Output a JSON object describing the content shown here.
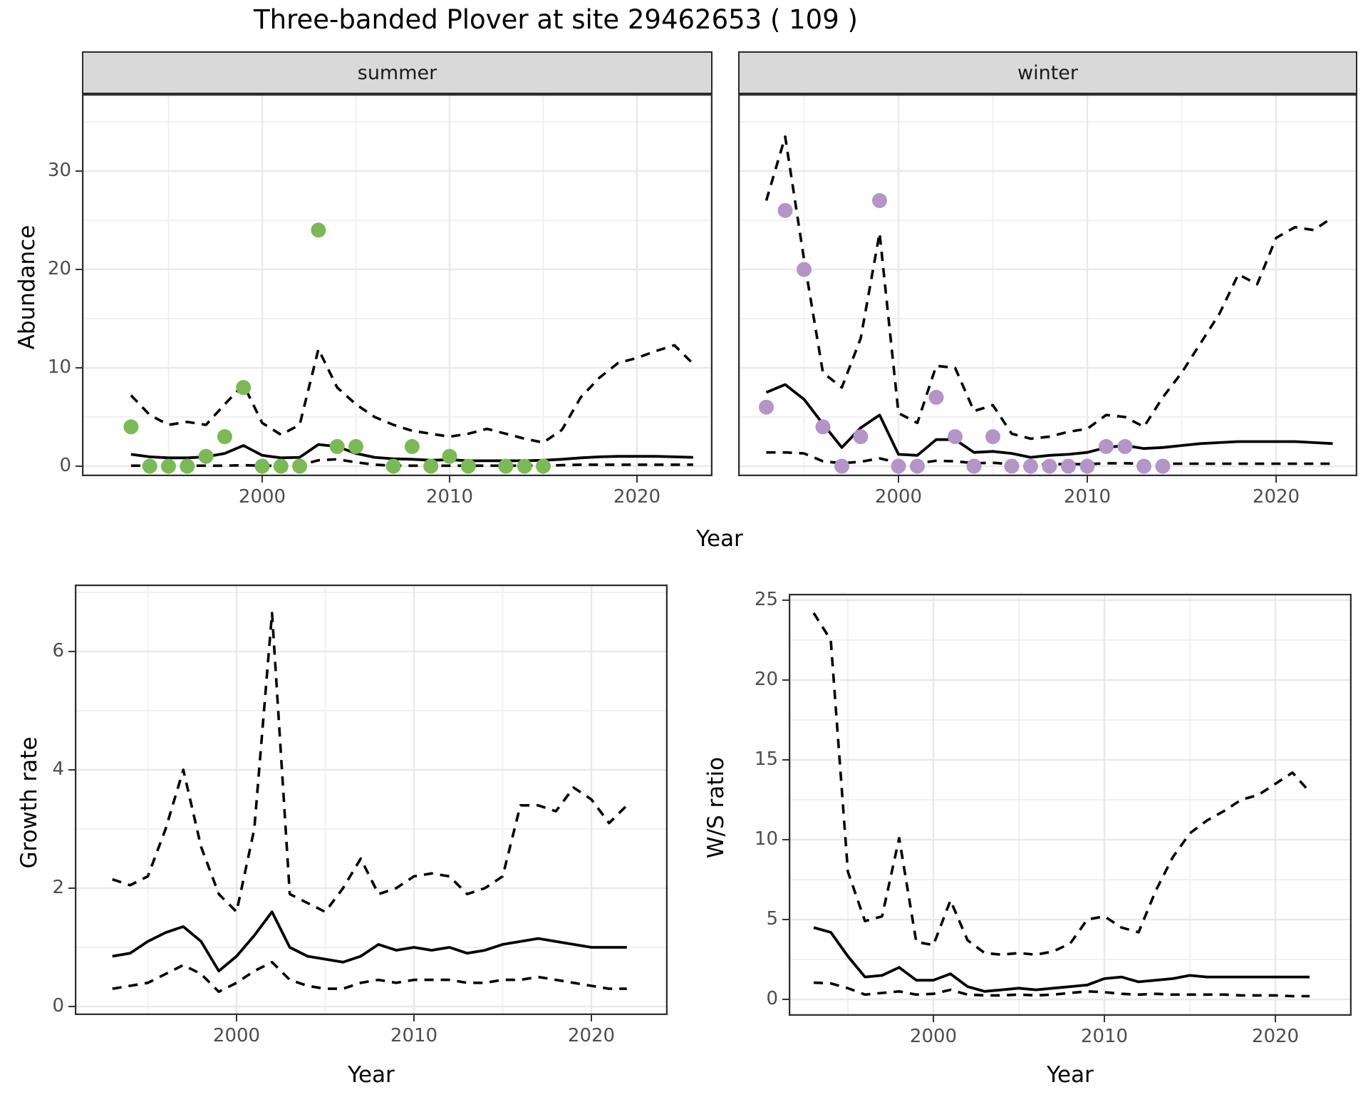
{
  "title": "Three-banded Plover at site 29462653 ( 109 )",
  "axis_titles": {
    "x": "Year",
    "y_abundance": "Abundance",
    "y_growth": "Growth rate",
    "y_ws": "W/S ratio"
  },
  "facets": {
    "summer": "summer",
    "winter": "winter"
  },
  "colors": {
    "summer_point": "#7bb957",
    "winter_point": "#b495c7",
    "line": "#000000",
    "grid_major": "#e9e9e9",
    "grid_minor": "#f1f1f1",
    "strip_bg": "#d9d9d9",
    "panel_border": "#2f2f2f",
    "tick_label": "#4d4d4d"
  },
  "chart_data": [
    {
      "key": "summer",
      "type": "line",
      "facet_label": "summer",
      "ylabel": "Abundance",
      "xlabel": "Year",
      "xlim": [
        1990.4,
        2024.0
      ],
      "ylim": [
        -1.05,
        37.8
      ],
      "x_ticks": {
        "values": [
          2000,
          2010,
          2020
        ],
        "labels": [
          "2000",
          "2010",
          "2020"
        ]
      },
      "x_minor": [
        1995,
        2005,
        2015
      ],
      "y_ticks": {
        "values": [
          0,
          10,
          20,
          30
        ],
        "labels": [
          "0",
          "10",
          "20",
          "30"
        ]
      },
      "y_minor": [
        5,
        15,
        25,
        35
      ],
      "x": [
        1993,
        1994,
        1995,
        1996,
        1997,
        1998,
        1999,
        2000,
        2001,
        2002,
        2003,
        2004,
        2005,
        2006,
        2007,
        2008,
        2009,
        2010,
        2011,
        2012,
        2013,
        2014,
        2015,
        2016,
        2017,
        2018,
        2019,
        2020,
        2021,
        2022,
        2023
      ],
      "series": [
        {
          "name": "median",
          "style": "solid",
          "values": [
            1.2,
            0.95,
            0.85,
            0.85,
            0.95,
            1.3,
            2.1,
            1.1,
            0.85,
            0.9,
            2.2,
            2.0,
            1.3,
            0.9,
            0.75,
            0.7,
            0.6,
            0.65,
            0.55,
            0.55,
            0.55,
            0.55,
            0.6,
            0.7,
            0.85,
            0.95,
            1.0,
            1.0,
            1.0,
            0.95,
            0.9
          ]
        },
        {
          "name": "upper95",
          "style": "dashed",
          "values": [
            7.2,
            5.2,
            4.2,
            4.5,
            4.2,
            6.3,
            8.3,
            4.4,
            3.2,
            4.2,
            11.9,
            8.0,
            6.3,
            5.0,
            4.2,
            3.6,
            3.3,
            3.0,
            3.3,
            3.8,
            3.3,
            2.8,
            2.4,
            3.7,
            7.0,
            9.0,
            10.5,
            11.0,
            11.7,
            12.3,
            10.4
          ]
        },
        {
          "name": "lower95",
          "style": "dashed",
          "values": [
            0.05,
            0.05,
            0.05,
            0.05,
            0.05,
            0.05,
            0.1,
            0.05,
            0.05,
            0.1,
            0.6,
            0.7,
            0.4,
            0.15,
            0.05,
            0.05,
            0.05,
            0.05,
            0.05,
            0.05,
            0.05,
            0.05,
            0.05,
            0.1,
            0.15,
            0.15,
            0.15,
            0.15,
            0.15,
            0.15,
            0.15
          ]
        }
      ],
      "points": {
        "color_key": "summer_point",
        "x": [
          1993,
          1994,
          1995,
          1996,
          1997,
          1998,
          1999,
          2000,
          2001,
          2002,
          2003,
          2004,
          2005,
          2007,
          2008,
          2009,
          2010,
          2011,
          2013,
          2014,
          2015
        ],
        "y": [
          4,
          0,
          0,
          0,
          1,
          3,
          8,
          0,
          0,
          0,
          24,
          2,
          2,
          0,
          2,
          0,
          1,
          0,
          0,
          0,
          0
        ]
      }
    },
    {
      "key": "winter",
      "type": "line",
      "facet_label": "winter",
      "ylabel": "Abundance",
      "xlabel": "Year",
      "xlim": [
        1991.5,
        2024.3
      ],
      "ylim": [
        -1.05,
        37.8
      ],
      "x_ticks": {
        "values": [
          2000,
          2010,
          2020
        ],
        "labels": [
          "2000",
          "2010",
          "2020"
        ]
      },
      "x_minor": [
        1995,
        2005,
        2015
      ],
      "y_ticks": {
        "values": [
          0,
          10,
          20,
          30
        ],
        "labels": [
          "0",
          "10",
          "20",
          "30"
        ]
      },
      "y_minor": [
        5,
        15,
        25,
        35
      ],
      "x": [
        1993,
        1994,
        1995,
        1996,
        1997,
        1998,
        1999,
        2000,
        2001,
        2002,
        2003,
        2004,
        2005,
        2006,
        2007,
        2008,
        2009,
        2010,
        2011,
        2012,
        2013,
        2014,
        2015,
        2016,
        2017,
        2018,
        2019,
        2020,
        2021,
        2022,
        2023
      ],
      "series": [
        {
          "name": "median",
          "style": "solid",
          "values": [
            7.5,
            8.3,
            6.8,
            4.3,
            1.9,
            3.9,
            5.2,
            1.2,
            1.1,
            2.7,
            2.7,
            1.4,
            1.5,
            1.3,
            0.9,
            1.1,
            1.2,
            1.4,
            1.9,
            2.1,
            1.8,
            1.9,
            2.1,
            2.3,
            2.4,
            2.5,
            2.5,
            2.5,
            2.5,
            2.4,
            2.3
          ]
        },
        {
          "name": "upper95",
          "style": "dashed",
          "values": [
            27,
            33.5,
            21,
            9.5,
            8,
            13,
            23.7,
            5.4,
            4.4,
            10.2,
            10,
            5.6,
            6.2,
            3.3,
            2.8,
            3.0,
            3.5,
            3.8,
            5.2,
            5.0,
            4.0,
            7.0,
            9.5,
            12.5,
            15.5,
            19.5,
            18.5,
            23.2,
            24.3,
            24.0,
            25.3
          ]
        },
        {
          "name": "lower95",
          "style": "dashed",
          "values": [
            1.4,
            1.4,
            1.3,
            0.5,
            0.3,
            0.45,
            0.8,
            0.35,
            0.3,
            0.55,
            0.5,
            0.3,
            0.35,
            0.2,
            0.15,
            0.2,
            0.2,
            0.2,
            0.3,
            0.3,
            0.25,
            0.25,
            0.25,
            0.25,
            0.25,
            0.25,
            0.25,
            0.25,
            0.25,
            0.25,
            0.25
          ]
        }
      ],
      "points": {
        "color_key": "winter_point",
        "x": [
          1993,
          1994,
          1995,
          1996,
          1997,
          1998,
          1999,
          2000,
          2001,
          2002,
          2003,
          2004,
          2005,
          2006,
          2007,
          2008,
          2009,
          2010,
          2011,
          2012,
          2013,
          2014
        ],
        "y": [
          6,
          26,
          20,
          4,
          0,
          3,
          27,
          0,
          0,
          7,
          3,
          0,
          3,
          0,
          0,
          0,
          0,
          0,
          2,
          2,
          0,
          0
        ]
      }
    },
    {
      "key": "growth",
      "type": "line",
      "facet_label": null,
      "ylabel": "Growth rate",
      "xlabel": "Year",
      "xlim": [
        1990.9,
        2024.3
      ],
      "ylim": [
        -0.15,
        7.13
      ],
      "x_ticks": {
        "values": [
          2000,
          2010,
          2020
        ],
        "labels": [
          "2000",
          "2010",
          "2020"
        ]
      },
      "x_minor": [
        1995,
        2005,
        2015
      ],
      "y_ticks": {
        "values": [
          0,
          2,
          4,
          6
        ],
        "labels": [
          "0",
          "2",
          "4",
          "6"
        ]
      },
      "y_minor": [
        1,
        3,
        5,
        7
      ],
      "x": [
        1993,
        1994,
        1995,
        1996,
        1997,
        1998,
        1999,
        2000,
        2001,
        2002,
        2003,
        2004,
        2005,
        2006,
        2007,
        2008,
        2009,
        2010,
        2011,
        2012,
        2013,
        2014,
        2015,
        2016,
        2017,
        2018,
        2019,
        2020,
        2021,
        2022
      ],
      "series": [
        {
          "name": "median",
          "style": "solid",
          "values": [
            0.85,
            0.9,
            1.1,
            1.25,
            1.35,
            1.1,
            0.6,
            0.85,
            1.2,
            1.6,
            1.0,
            0.85,
            0.8,
            0.75,
            0.85,
            1.05,
            0.95,
            1.0,
            0.95,
            1.0,
            0.9,
            0.95,
            1.05,
            1.1,
            1.15,
            1.1,
            1.05,
            1.0,
            1.0,
            1.0
          ]
        },
        {
          "name": "upper95",
          "style": "dashed",
          "values": [
            2.15,
            2.05,
            2.2,
            3.0,
            4.0,
            2.7,
            1.9,
            1.6,
            3.0,
            6.65,
            1.9,
            1.75,
            1.6,
            2.0,
            2.5,
            1.9,
            2.0,
            2.2,
            2.25,
            2.2,
            1.9,
            2.0,
            2.2,
            3.4,
            3.4,
            3.3,
            3.7,
            3.5,
            3.1,
            3.4
          ]
        },
        {
          "name": "lower95",
          "style": "dashed",
          "values": [
            0.3,
            0.35,
            0.4,
            0.55,
            0.7,
            0.55,
            0.25,
            0.4,
            0.6,
            0.75,
            0.45,
            0.35,
            0.3,
            0.3,
            0.4,
            0.45,
            0.4,
            0.45,
            0.45,
            0.45,
            0.4,
            0.4,
            0.45,
            0.45,
            0.5,
            0.45,
            0.4,
            0.35,
            0.3,
            0.3
          ]
        }
      ],
      "points": null
    },
    {
      "key": "ws",
      "type": "line",
      "facet_label": null,
      "ylabel": "W/S ratio",
      "xlabel": "Year",
      "xlim": [
        1991.5,
        2024.5
      ],
      "ylim": [
        -1.0,
        25.4
      ],
      "x_ticks": {
        "values": [
          2000,
          2010,
          2020
        ],
        "labels": [
          "2000",
          "2010",
          "2020"
        ]
      },
      "x_minor": [
        1995,
        2005,
        2015
      ],
      "y_ticks": {
        "values": [
          0,
          5,
          10,
          15,
          20,
          25
        ],
        "labels": [
          "0",
          "5",
          "10",
          "15",
          "20",
          "25"
        ]
      },
      "y_minor": [
        2.5,
        7.5,
        12.5,
        17.5,
        22.5
      ],
      "x": [
        1993,
        1994,
        1995,
        1996,
        1997,
        1998,
        1999,
        2000,
        2001,
        2002,
        2003,
        2004,
        2005,
        2006,
        2007,
        2008,
        2009,
        2010,
        2011,
        2012,
        2013,
        2014,
        2015,
        2016,
        2017,
        2018,
        2019,
        2020,
        2021,
        2022
      ],
      "series": [
        {
          "name": "median",
          "style": "solid",
          "values": [
            4.5,
            4.2,
            2.7,
            1.4,
            1.5,
            2.0,
            1.2,
            1.2,
            1.6,
            0.8,
            0.5,
            0.6,
            0.7,
            0.6,
            0.7,
            0.8,
            0.9,
            1.3,
            1.4,
            1.1,
            1.2,
            1.3,
            1.5,
            1.4,
            1.4,
            1.4,
            1.4,
            1.4,
            1.4,
            1.4
          ]
        },
        {
          "name": "upper95",
          "style": "dashed",
          "values": [
            24.2,
            22.5,
            8.0,
            4.9,
            5.2,
            10.1,
            3.6,
            3.4,
            6.2,
            3.7,
            2.9,
            2.8,
            2.9,
            2.8,
            3.0,
            3.5,
            5.0,
            5.2,
            4.5,
            4.2,
            6.8,
            8.9,
            10.4,
            11.2,
            11.8,
            12.5,
            12.8,
            13.5,
            14.2,
            13.0
          ]
        },
        {
          "name": "lower95",
          "style": "dashed",
          "values": [
            1.05,
            1.0,
            0.7,
            0.3,
            0.4,
            0.5,
            0.3,
            0.35,
            0.6,
            0.3,
            0.25,
            0.25,
            0.3,
            0.25,
            0.3,
            0.4,
            0.5,
            0.45,
            0.35,
            0.3,
            0.35,
            0.3,
            0.3,
            0.3,
            0.3,
            0.25,
            0.25,
            0.25,
            0.2,
            0.2
          ]
        }
      ],
      "points": null
    }
  ]
}
